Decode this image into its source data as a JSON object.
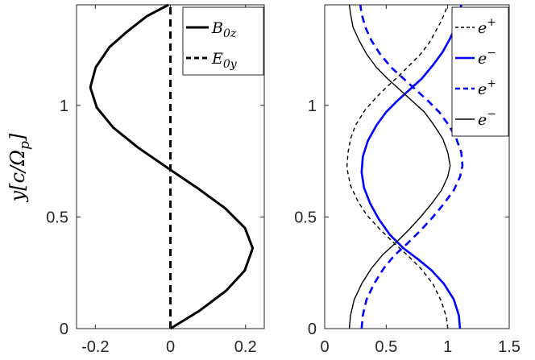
{
  "chart_data": [
    {
      "type": "line",
      "panel": "left",
      "ylabel": "y[c/Ωp]",
      "xlim": [
        -0.25,
        0.25
      ],
      "ylim": [
        0,
        1.45
      ],
      "xticks": [
        -0.2,
        0,
        0.2
      ],
      "xtick_labels": [
        "-0.2",
        "0",
        "0.2"
      ],
      "yticks": [
        0,
        0.5,
        1
      ],
      "ytick_labels": [
        "0",
        "0.5",
        "1"
      ],
      "legend_position": "top-right",
      "series": [
        {
          "name": "B0z",
          "legend_main": "B",
          "legend_sub": "0z",
          "color": "#000000",
          "style": "solid",
          "x": [
            0,
            0.0776,
            0.1486,
            0.198,
            0.2191,
            0.1987,
            0.1451,
            0.0714,
            -0.0077,
            -0.0856,
            -0.1522,
            -0.196,
            -0.2133,
            -0.199,
            -0.1626,
            -0.1154,
            -0.062,
            -0.005
          ],
          "y": [
            0,
            0.08,
            0.17,
            0.26,
            0.36,
            0.45,
            0.54,
            0.63,
            0.72,
            0.81,
            0.9,
            0.99,
            1.08,
            1.17,
            1.26,
            1.33,
            1.4,
            1.45
          ]
        },
        {
          "name": "E0y",
          "legend_main": "E",
          "legend_sub": "0y",
          "color": "#000000",
          "style": "dashed",
          "x": [
            0,
            0
          ],
          "y": [
            0,
            1.45
          ]
        }
      ]
    },
    {
      "type": "line",
      "panel": "right",
      "xlim": [
        0,
        1.5
      ],
      "ylim": [
        0,
        1.45
      ],
      "xticks": [
        0,
        0.5,
        1,
        1.5
      ],
      "xtick_labels": [
        "0",
        "0.5",
        "1",
        "1.5"
      ],
      "yticks": [
        0,
        0.5,
        1
      ],
      "ytick_labels": [
        "0",
        "0.5",
        "1"
      ],
      "legend_position": "top-right",
      "series": [
        {
          "name": "e+",
          "legend_main": "e",
          "legend_sup": "+",
          "color": "#000000",
          "style": "dashed",
          "width": 1.4,
          "x": [
            1.0,
            0.99,
            0.95,
            0.88,
            0.78,
            0.67,
            0.55,
            0.44,
            0.34,
            0.27,
            0.21,
            0.18,
            0.19,
            0.21,
            0.25,
            0.33,
            0.41,
            0.5,
            0.6,
            0.69,
            0.78,
            0.85,
            0.9,
            0.95,
            0.98,
            1.0
          ],
          "y": [
            0,
            0.05,
            0.12,
            0.2,
            0.27,
            0.33,
            0.39,
            0.45,
            0.51,
            0.57,
            0.64,
            0.72,
            0.79,
            0.85,
            0.91,
            0.98,
            1.03,
            1.08,
            1.13,
            1.18,
            1.23,
            1.28,
            1.33,
            1.38,
            1.42,
            1.45
          ]
        },
        {
          "name": "e-",
          "legend_main": "e",
          "legend_sup": "−",
          "color": "#0000ff",
          "style": "solid",
          "width": 2.6,
          "x": [
            1.1,
            1.09,
            1.05,
            0.97,
            0.87,
            0.76,
            0.64,
            0.53,
            0.44,
            0.37,
            0.32,
            0.3,
            0.31,
            0.35,
            0.42,
            0.5,
            0.59,
            0.69,
            0.79,
            0.88,
            0.96,
            1.02,
            1.07,
            1.1,
            1.11
          ],
          "y": [
            0,
            0.06,
            0.13,
            0.2,
            0.26,
            0.31,
            0.36,
            0.42,
            0.49,
            0.56,
            0.63,
            0.7,
            0.77,
            0.84,
            0.91,
            0.97,
            1.02,
            1.07,
            1.12,
            1.18,
            1.24,
            1.3,
            1.36,
            1.41,
            1.45
          ]
        },
        {
          "name": "e+",
          "legend_main": "e",
          "legend_sup": "+",
          "color": "#0000ff",
          "style": "dashed",
          "width": 2.6,
          "x": [
            0.3,
            0.31,
            0.34,
            0.4,
            0.48,
            0.57,
            0.67,
            0.78,
            0.88,
            0.97,
            1.05,
            1.1,
            1.12,
            1.11,
            1.07,
            1.01,
            0.93,
            0.84,
            0.74,
            0.64,
            0.54,
            0.45,
            0.38,
            0.33,
            0.3,
            0.29
          ],
          "y": [
            0,
            0.06,
            0.13,
            0.2,
            0.27,
            0.33,
            0.38,
            0.44,
            0.5,
            0.56,
            0.62,
            0.68,
            0.73,
            0.79,
            0.85,
            0.91,
            0.97,
            1.02,
            1.07,
            1.12,
            1.17,
            1.23,
            1.29,
            1.35,
            1.41,
            1.45
          ]
        },
        {
          "name": "e-",
          "legend_main": "e",
          "legend_sup": "−",
          "color": "#000000",
          "style": "solid",
          "width": 1.4,
          "x": [
            0.2,
            0.21,
            0.24,
            0.3,
            0.38,
            0.47,
            0.57,
            0.68,
            0.78,
            0.87,
            0.95,
            1.0,
            1.02,
            1.0,
            0.96,
            0.89,
            0.81,
            0.71,
            0.61,
            0.51,
            0.42,
            0.34,
            0.28,
            0.23,
            0.21,
            0.2
          ],
          "y": [
            0,
            0.06,
            0.13,
            0.2,
            0.27,
            0.33,
            0.38,
            0.44,
            0.5,
            0.56,
            0.62,
            0.68,
            0.73,
            0.79,
            0.85,
            0.91,
            0.97,
            1.02,
            1.07,
            1.12,
            1.17,
            1.23,
            1.29,
            1.35,
            1.41,
            1.45
          ]
        }
      ]
    }
  ]
}
